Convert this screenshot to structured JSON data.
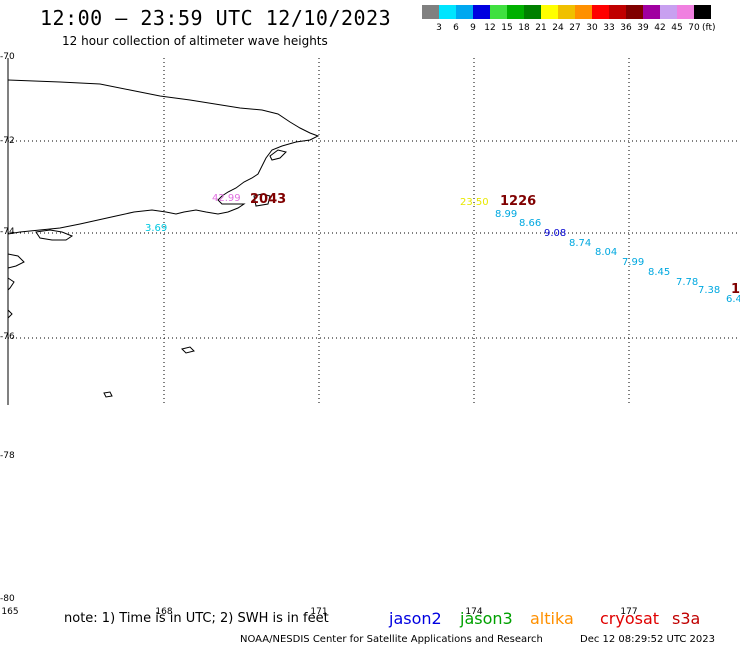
{
  "title": "12:00 – 23:59 UTC 12/10/2023",
  "subtitle": "12 hour collection of altimeter wave heights",
  "colorbar": {
    "colors": [
      "#808080",
      "#00e5ff",
      "#00a8f0",
      "#0000e0",
      "#40e040",
      "#00b000",
      "#008000",
      "#ffff00",
      "#f0c000",
      "#ff9000",
      "#ff0000",
      "#c00000",
      "#800000",
      "#a000a0",
      "#c8a0f0",
      "#f080e0",
      "#000000"
    ],
    "labels": [
      "3",
      "6",
      "9",
      "12",
      "15",
      "18",
      "21",
      "24",
      "27",
      "30",
      "33",
      "36",
      "39",
      "42",
      "45",
      "70"
    ],
    "unit": "(ft)"
  },
  "lat_labels": [
    "-70",
    "-72",
    "-74",
    "-76",
    "-78",
    "-80"
  ],
  "lon_labels": [
    "165",
    "168",
    "171",
    "174",
    "177"
  ],
  "observations": [
    {
      "text": "3.69",
      "color": "#00c8e0",
      "big": false
    },
    {
      "text": "42.99",
      "color": "#e070e0",
      "big": false
    },
    {
      "text": "2043",
      "color": "#800000",
      "big": true
    },
    {
      "text": "23.50",
      "color": "#e8e800",
      "big": false
    },
    {
      "text": "1226",
      "color": "#800000",
      "big": true
    },
    {
      "text": "8.99",
      "color": "#00a8e0",
      "big": false
    },
    {
      "text": "8.66",
      "color": "#00a8e0",
      "big": false
    },
    {
      "text": "9.08",
      "color": "#0000d0",
      "big": false
    },
    {
      "text": "8.74",
      "color": "#00a8e0",
      "big": false
    },
    {
      "text": "8.04",
      "color": "#00a8e0",
      "big": false
    },
    {
      "text": "7.99",
      "color": "#00a8e0",
      "big": false
    },
    {
      "text": "8.45",
      "color": "#00a8e0",
      "big": false
    },
    {
      "text": "7.78",
      "color": "#00a8e0",
      "big": false
    },
    {
      "text": "7.38",
      "color": "#00a8e0",
      "big": false
    },
    {
      "text": "1",
      "color": "#800000",
      "big": true
    },
    {
      "text": "6.4",
      "color": "#00a8e0",
      "big": false
    }
  ],
  "note": "note: 1) Time is in UTC; 2) SWH is in feet",
  "satellites": [
    {
      "name": "jason2",
      "color": "#0000e0"
    },
    {
      "name": "jason3",
      "color": "#00a000"
    },
    {
      "name": "altika",
      "color": "#ff9000"
    },
    {
      "name": "cryosat",
      "color": "#e00000"
    },
    {
      "name": "s3a",
      "color": "#c00000"
    }
  ],
  "footer_left": "NOAA/NESDIS Center for Satellite Applications and Research",
  "footer_right": "Dec 12 08:29:52 UTC 2023"
}
